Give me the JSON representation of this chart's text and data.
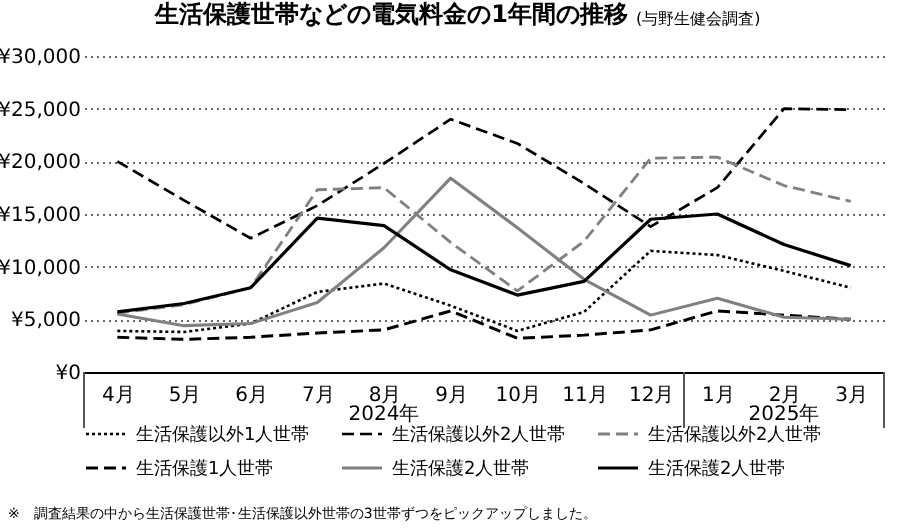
{
  "chart_data": {
    "type": "line",
    "title": "生活保護世帯などの電気料金の1年間の推移",
    "subtitle": "(与野生健会調査)",
    "categories": [
      "4月",
      "5月",
      "6月",
      "7月",
      "8月",
      "9月",
      "10月",
      "11月",
      "12月",
      "1月",
      "2月",
      "3月"
    ],
    "series": [
      {
        "name": "生活保護以外1人世帯",
        "color": "#000000",
        "line_style": "dotted",
        "values": [
          3900,
          3800,
          4600,
          7600,
          8400,
          6300,
          3900,
          5700,
          11500,
          11100,
          9600,
          8000
        ]
      },
      {
        "name": "生活保護以外2人世帯",
        "color": "#000000",
        "line_style": "dashed",
        "values": [
          20000,
          16300,
          12700,
          15800,
          19800,
          24000,
          21700,
          17900,
          13800,
          17500,
          25000,
          24900
        ]
      },
      {
        "name": "生活保護以外2人世帯",
        "color": "#808080",
        "line_style": "dashed",
        "values": [
          5600,
          6400,
          8000,
          17300,
          17500,
          12300,
          7700,
          12400,
          20300,
          20400,
          17700,
          16200
        ]
      },
      {
        "name": "生活保護1人世帯",
        "color": "#000000",
        "line_style": "dashed",
        "values": [
          3300,
          3100,
          3300,
          3700,
          4000,
          5800,
          3200,
          3500,
          4000,
          5800,
          5400,
          5000
        ]
      },
      {
        "name": "生活保護2人世帯",
        "color": "#808080",
        "line_style": "solid",
        "values": [
          5500,
          4400,
          4600,
          6600,
          11800,
          18400,
          13700,
          8800,
          5400,
          7000,
          5200,
          5000
        ]
      },
      {
        "name": "生活保護2人世帯",
        "color": "#000000",
        "line_style": "solid",
        "values": [
          5700,
          6500,
          8000,
          14600,
          13900,
          9700,
          7300,
          8600,
          14500,
          15000,
          12100,
          10100
        ]
      }
    ],
    "ylim": [
      0,
      30000
    ],
    "yticks": [
      {
        "value": 0,
        "label": "¥0"
      },
      {
        "value": 5000,
        "label": "¥5,000"
      },
      {
        "value": 10000,
        "label": "¥10,000"
      },
      {
        "value": 15000,
        "label": "¥15,000"
      },
      {
        "value": 20000,
        "label": "¥20,000"
      },
      {
        "value": 25000,
        "label": "¥25,000"
      },
      {
        "value": 30000,
        "label": "¥30,000"
      }
    ],
    "grid": "y",
    "legend": "bottom",
    "marker": "none",
    "annotations": [
      "2024年",
      "2025年",
      "※　調査結果の中から生活保護世帯･生活保護以外世帯の3世帯ずつをピックアップしました。"
    ]
  }
}
